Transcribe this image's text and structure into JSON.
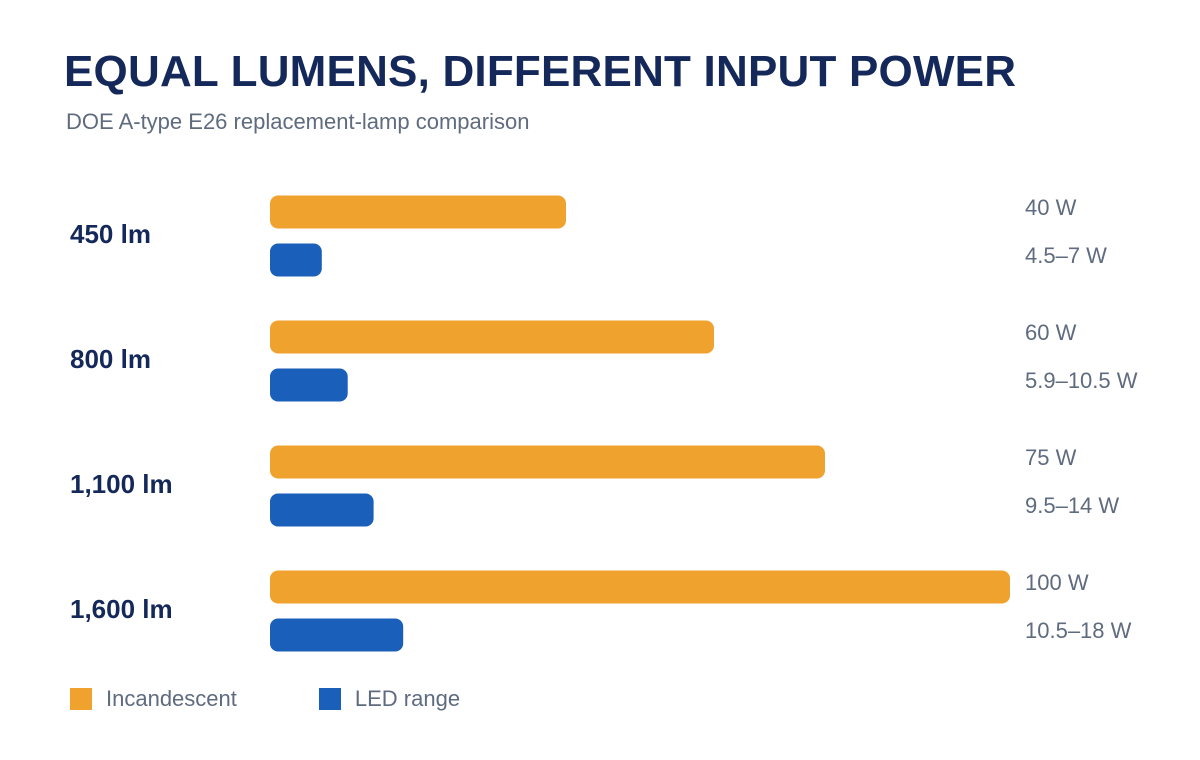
{
  "title": "EQUAL LUMENS, DIFFERENT INPUT POWER",
  "subtitle": "DOE A-type E26 replacement-lamp comparison",
  "colors": {
    "incandescent": "#f0a22e",
    "led": "#1a5fb9",
    "title": "#14285a",
    "text": "#5f6b7e"
  },
  "chart_data": {
    "type": "bar",
    "orientation": "horizontal",
    "title": "EQUAL LUMENS, DIFFERENT INPUT POWER",
    "subtitle": "DOE A-type E26 replacement-lamp comparison",
    "categories": [
      "450 lm",
      "800 lm",
      "1,100 lm",
      "1,600 lm"
    ],
    "series": [
      {
        "name": "Incandescent",
        "values": [
          40,
          60,
          75,
          100
        ],
        "labels": [
          "40 W",
          "60 W",
          "75 W",
          "100 W"
        ]
      },
      {
        "name": "LED range",
        "values": [
          7,
          10.5,
          14,
          18
        ],
        "ranges": [
          [
            4.5,
            7
          ],
          [
            5.9,
            10.5
          ],
          [
            9.5,
            14
          ],
          [
            10.5,
            18
          ]
        ],
        "labels": [
          "4.5–7 W",
          "5.9–10.5 W",
          "9.5–14 W",
          "10.5–18 W"
        ]
      }
    ],
    "xlim": [
      0,
      100
    ],
    "grid": false,
    "legend": "bottom-left"
  }
}
